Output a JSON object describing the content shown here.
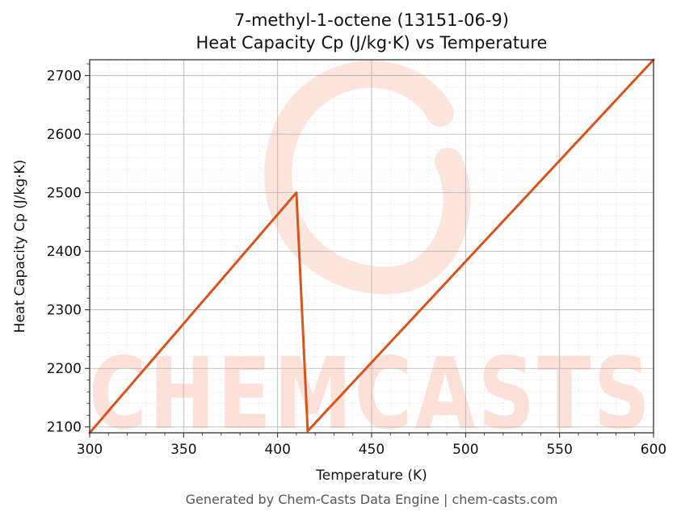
{
  "chart_data": {
    "type": "line",
    "title_line1": "7-methyl-1-octene (13151-06-9)",
    "title_line2": "Heat Capacity Cp (J/kg·K) vs Temperature",
    "xlabel": "Temperature (K)",
    "ylabel": "Heat Capacity Cp (J/kg·K)",
    "xlim": [
      300,
      600
    ],
    "ylim": [
      2090,
      2727
    ],
    "xticks": [
      300,
      350,
      400,
      450,
      500,
      550,
      600
    ],
    "yticks": [
      2100,
      2200,
      2300,
      2400,
      2500,
      2600,
      2700
    ],
    "grid": true,
    "line_color": "#d9531e",
    "series": [
      {
        "x": [
          300,
          410,
          416,
          600
        ],
        "y": [
          2090,
          2500,
          2093,
          2727
        ]
      }
    ]
  },
  "watermark": {
    "text": "CHEMCASTS",
    "color": "#fde0d8"
  },
  "footer": "Generated by Chem-Casts Data Engine | chem-casts.com"
}
